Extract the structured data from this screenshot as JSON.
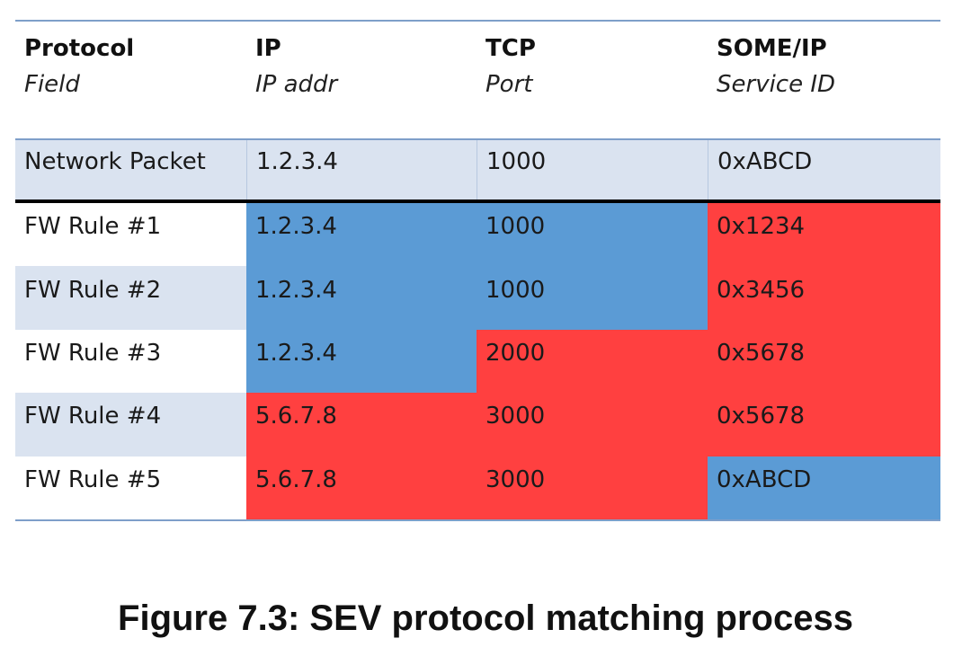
{
  "table": {
    "headers": [
      {
        "name": "Protocol",
        "sub": "Field"
      },
      {
        "name": "IP",
        "sub": "IP addr"
      },
      {
        "name": "TCP",
        "sub": "Port"
      },
      {
        "name": "SOME/IP",
        "sub": "Service ID"
      }
    ],
    "packet": {
      "label": "Network Packet",
      "values": [
        "1.2.3.4",
        "1000",
        "0xABCD"
      ]
    },
    "rules": [
      {
        "label": "FW Rule #1",
        "values": [
          "1.2.3.4",
          "1000",
          "0x1234"
        ],
        "match": [
          true,
          true,
          false
        ]
      },
      {
        "label": "FW Rule #2",
        "values": [
          "1.2.3.4",
          "1000",
          "0x3456"
        ],
        "match": [
          true,
          true,
          false
        ]
      },
      {
        "label": "FW Rule #3",
        "values": [
          "1.2.3.4",
          "2000",
          "0x5678"
        ],
        "match": [
          true,
          false,
          false
        ]
      },
      {
        "label": "FW Rule #4",
        "values": [
          "5.6.7.8",
          "3000",
          "0x5678"
        ],
        "match": [
          false,
          false,
          false
        ]
      },
      {
        "label": "FW Rule #5",
        "values": [
          "5.6.7.8",
          "3000",
          "0xABCD"
        ],
        "match": [
          false,
          false,
          true
        ]
      }
    ],
    "colors": {
      "match": "#5b9bd5",
      "nomatch": "#ff4040",
      "band": "#dae3f0"
    }
  },
  "caption": "Figure 7.3: SEV protocol matching process"
}
